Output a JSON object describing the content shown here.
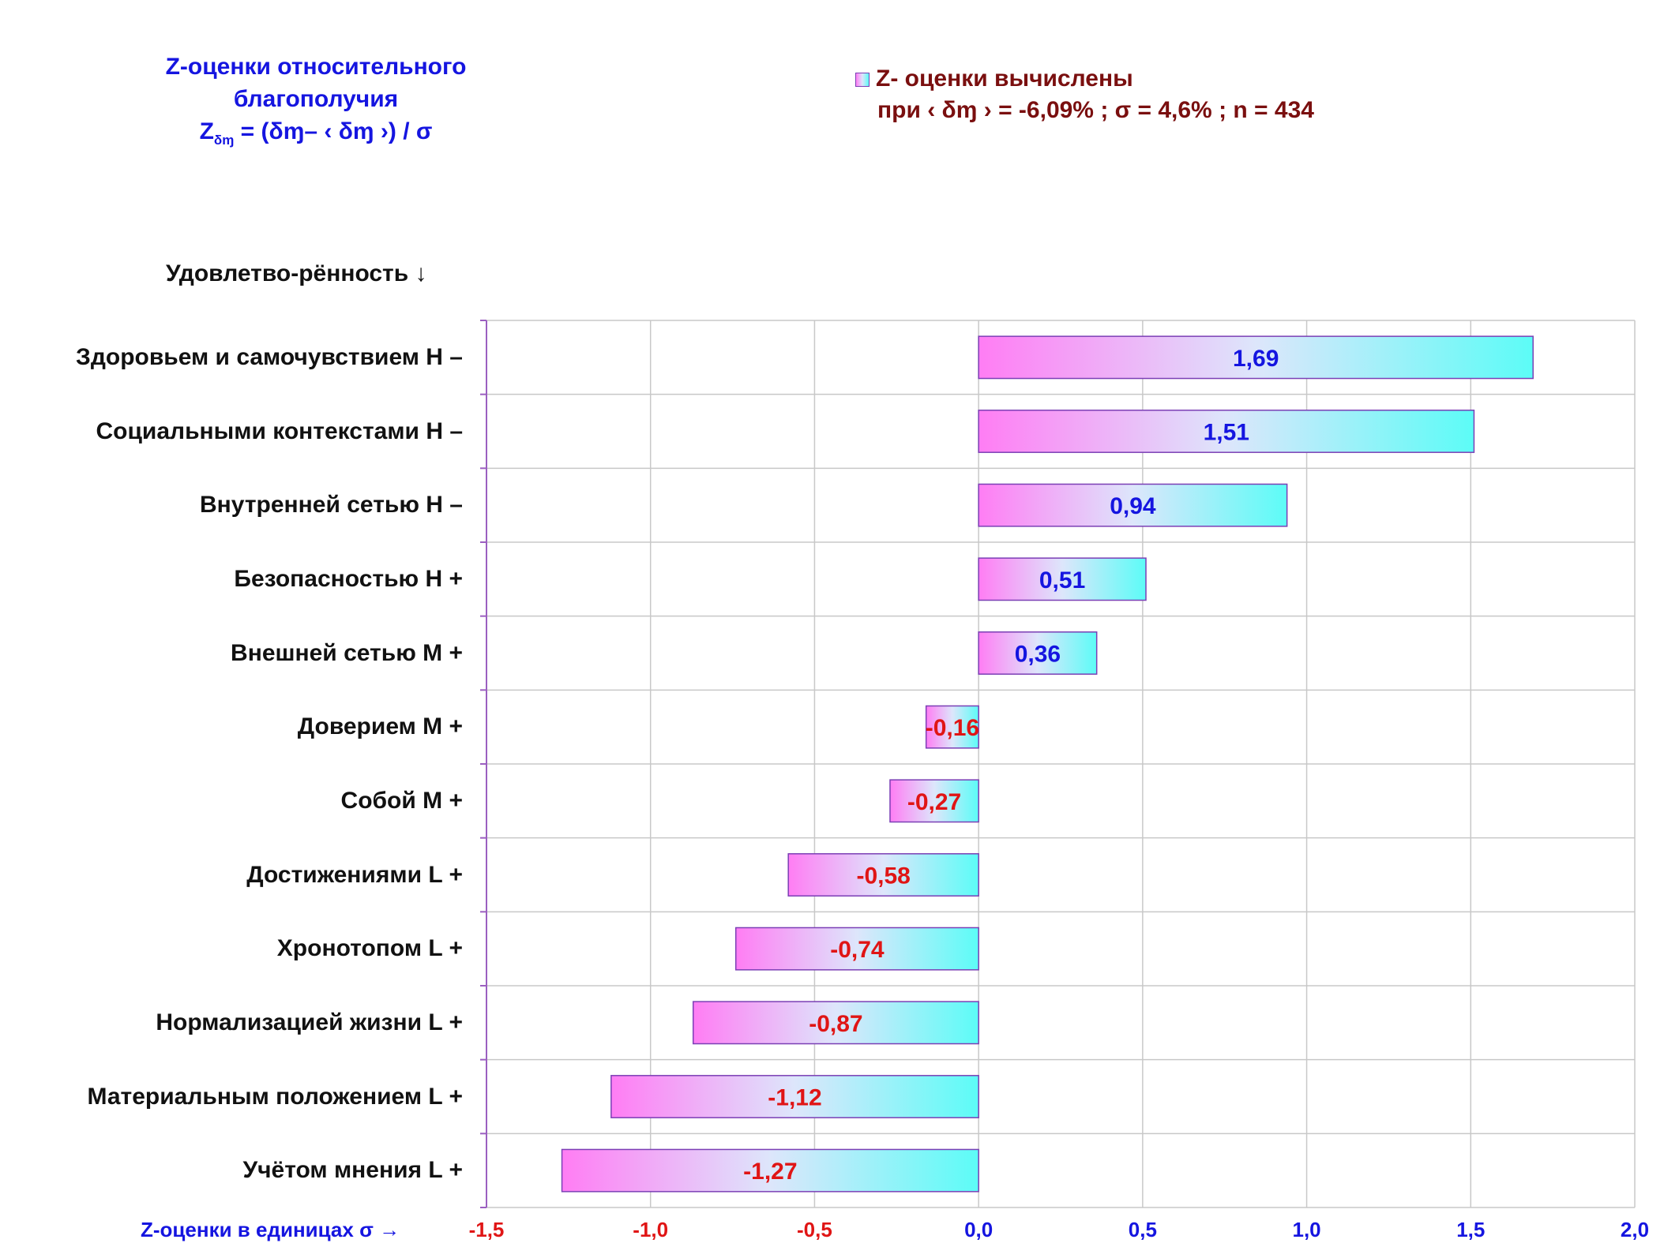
{
  "title": {
    "line1": "Z-оценки  относительного",
    "line2": "благополучия",
    "formula_z": "Z",
    "formula_sub": "δɱ",
    "formula_rest": " = (δɱ– ‹ δɱ ›)  / σ"
  },
  "legend": {
    "line1": "Z- оценки вычислены",
    "line2": "при ‹ δɱ › = -6,09% ; σ = 4,6% ; n = 434"
  },
  "colors": {
    "positive_label": "#1515e0",
    "negative_label": "#e01515",
    "bar_left": "#ff7df4",
    "bar_mid": "#dde6fb",
    "bar_right": "#5cfcf7",
    "bar_border": "#7b3fb5",
    "axis": "#9b5fc0",
    "grid": "#c8c8c8"
  },
  "chart_data": {
    "type": "bar",
    "orientation": "horizontal",
    "ylabel": "Удовлетво-рённость ↓",
    "xlabel": "Z-оценки в единицах σ →",
    "xlim": [
      -1.5,
      2.0
    ],
    "grid": true,
    "categories": [
      "Здоровьем и самочувствием  H –",
      "Социальными контекстами  H –",
      "Внутренней сетью  H –",
      "Безопасностью  H +",
      "Внешней сетью  M +",
      "Доверием  M +",
      "Собой  M +",
      "Достижениями  L +",
      "Хронотопом  L +",
      "Нормализацией жизни  L +",
      "Материальным положением  L +",
      "Учётом мнения  L +"
    ],
    "values": [
      1.69,
      1.51,
      0.94,
      0.51,
      0.36,
      -0.16,
      -0.27,
      -0.58,
      -0.74,
      -0.87,
      -1.12,
      -1.27
    ],
    "value_labels": [
      "1,69",
      "1,51",
      "0,94",
      "0,51",
      "0,36",
      "-0,16",
      "-0,27",
      "-0,58",
      "-0,74",
      "-0,87",
      "-1,12",
      "-1,27"
    ],
    "ticks": [
      -1.5,
      -1.0,
      -0.5,
      0.0,
      0.5,
      1.0,
      1.5,
      2.0
    ],
    "tick_labels": [
      "-1,5",
      "-1,0",
      "-0,5",
      "0,0",
      "0,5",
      "1,0",
      "1,5",
      "2,0"
    ]
  }
}
